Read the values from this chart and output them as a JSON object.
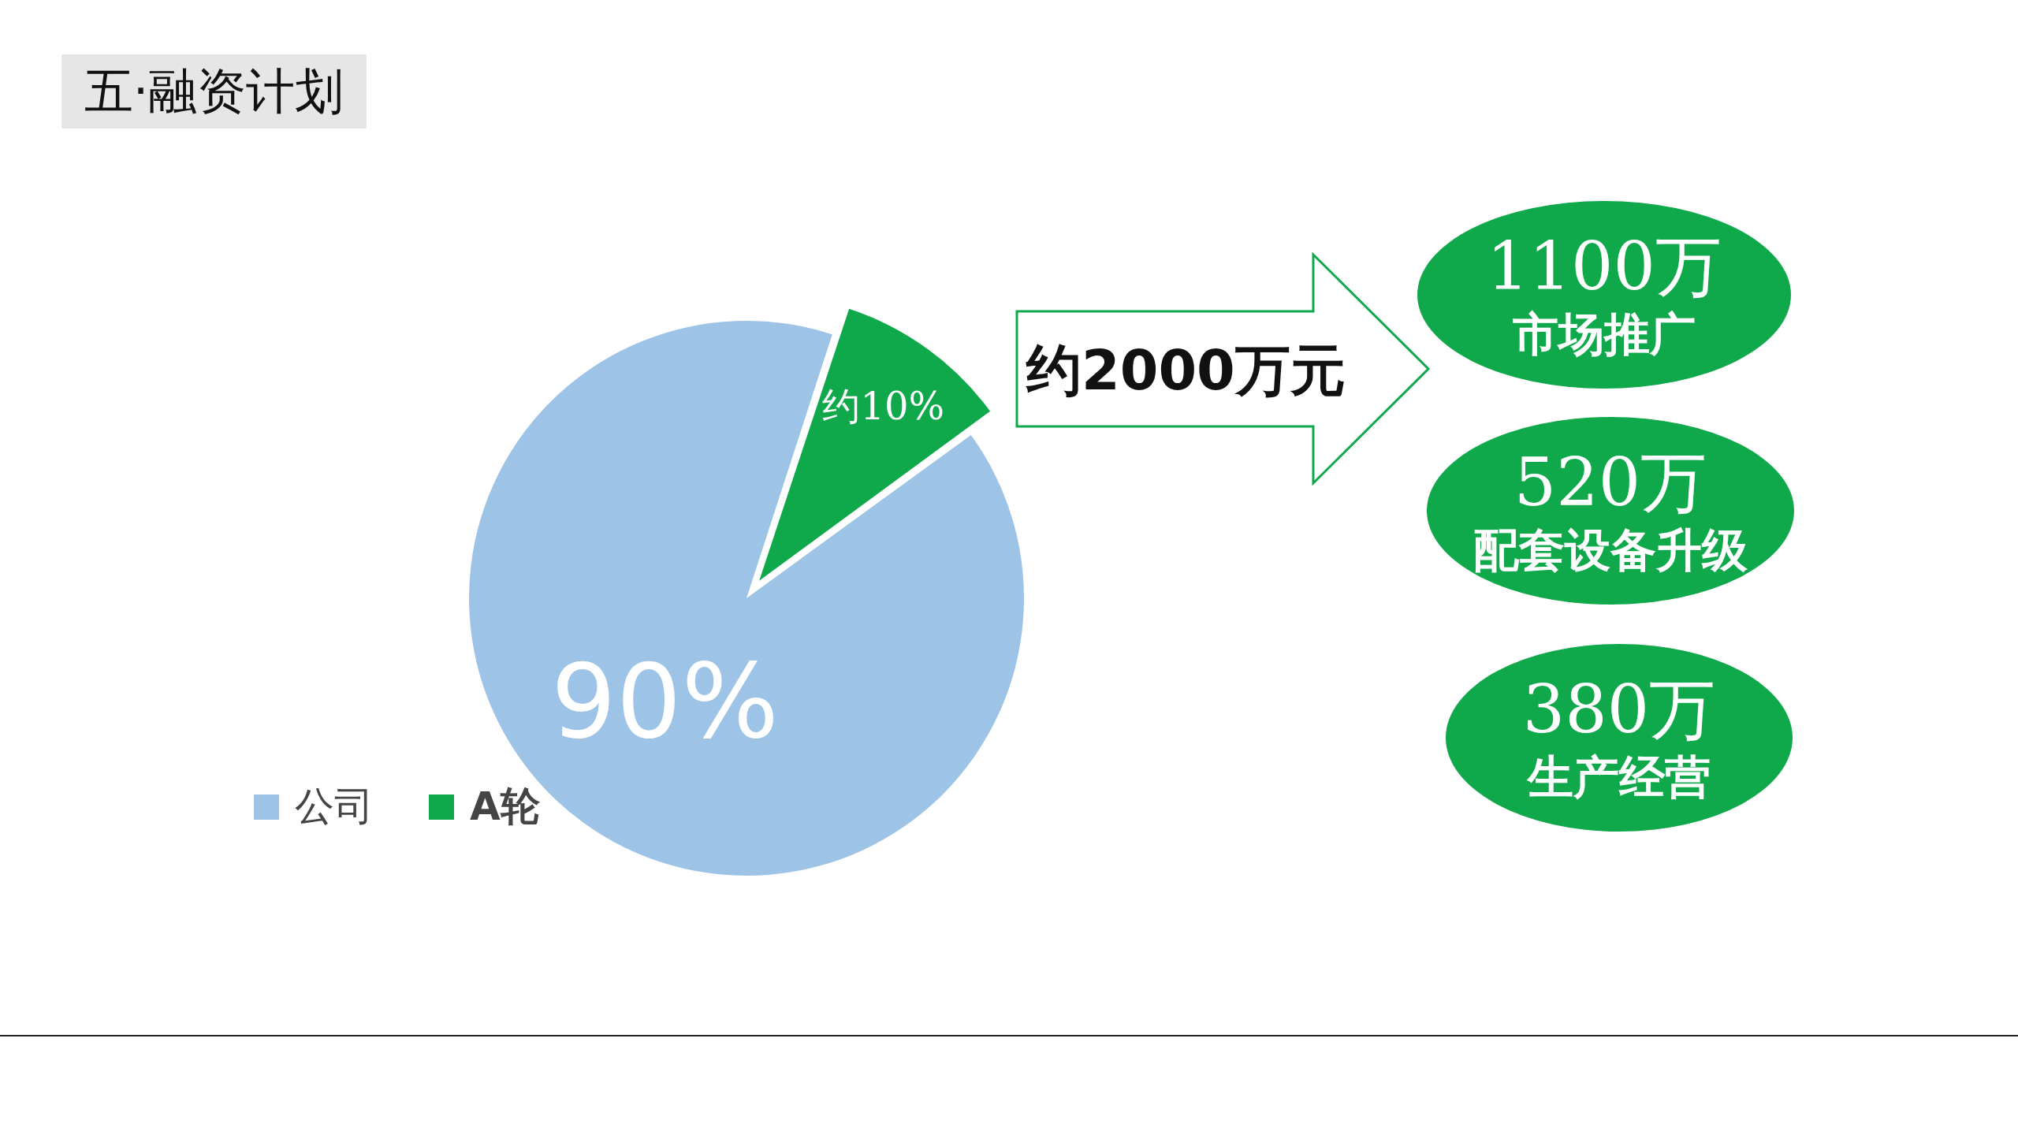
{
  "chart_data": {
    "type": "pie",
    "title": "五·融资计划",
    "categories": [
      "公司",
      "A轮"
    ],
    "values": [
      90,
      10
    ],
    "colors": [
      "#9dc3e6",
      "#0fa84a"
    ],
    "value_labels": [
      "90%",
      "约10%"
    ],
    "legend": "bottom left",
    "annotations": [
      "约2000万元",
      "1100万",
      "市场推广",
      "520万",
      "配套设备升级",
      "380万",
      "生产经营"
    ]
  }
}
